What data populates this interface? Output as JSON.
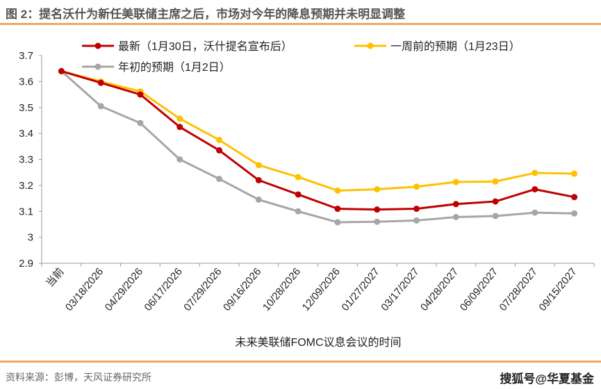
{
  "header": {
    "title": "图 2：提名沃什为新任美联储主席之后，市场对今年的降息预期并未明显调整"
  },
  "footer": {
    "source": "资料来源：彭博，天风证券研究所",
    "watermark": "搜狐号@华夏基金"
  },
  "chart_data": {
    "type": "line",
    "title": "图 2：提名沃什为新任美联储主席之后，市场对今年的降息预期并未明显调整",
    "xlabel": "未来美联储FOMC议息会议的时间",
    "ylabel": "",
    "ylim": [
      2.9,
      3.7
    ],
    "yticks": [
      "2.9",
      "3",
      "3.1",
      "3.2",
      "3.3",
      "3.4",
      "3.5",
      "3.6",
      "3.7"
    ],
    "grid": false,
    "legend_position": "top",
    "categories": [
      "当前",
      "03/18/2026",
      "04/29/2026",
      "06/17/2026",
      "07/29/2026",
      "09/16/2026",
      "10/28/2026",
      "12/09/2026",
      "01/27/2027",
      "03/17/2027",
      "04/28/2027",
      "06/09/2027",
      "07/28/2027",
      "09/15/2027"
    ],
    "series": [
      {
        "name": "年初的预期（1月2日）",
        "color": "#a6a6a6",
        "values": [
          3.64,
          3.505,
          3.44,
          3.3,
          3.225,
          3.145,
          3.1,
          3.058,
          3.06,
          3.065,
          3.078,
          3.082,
          3.095,
          3.092
        ]
      },
      {
        "name": "一周前的预期（1月23日）",
        "color": "#ffc000",
        "values": [
          3.64,
          3.6,
          3.562,
          3.457,
          3.375,
          3.278,
          3.232,
          3.18,
          3.185,
          3.195,
          3.213,
          3.215,
          3.248,
          3.245
        ]
      },
      {
        "name": "最新（1月30日，沃什提名宣布后）",
        "color": "#c00000",
        "values": [
          3.64,
          3.595,
          3.55,
          3.425,
          3.335,
          3.22,
          3.165,
          3.11,
          3.107,
          3.11,
          3.128,
          3.138,
          3.185,
          3.155
        ]
      }
    ]
  }
}
